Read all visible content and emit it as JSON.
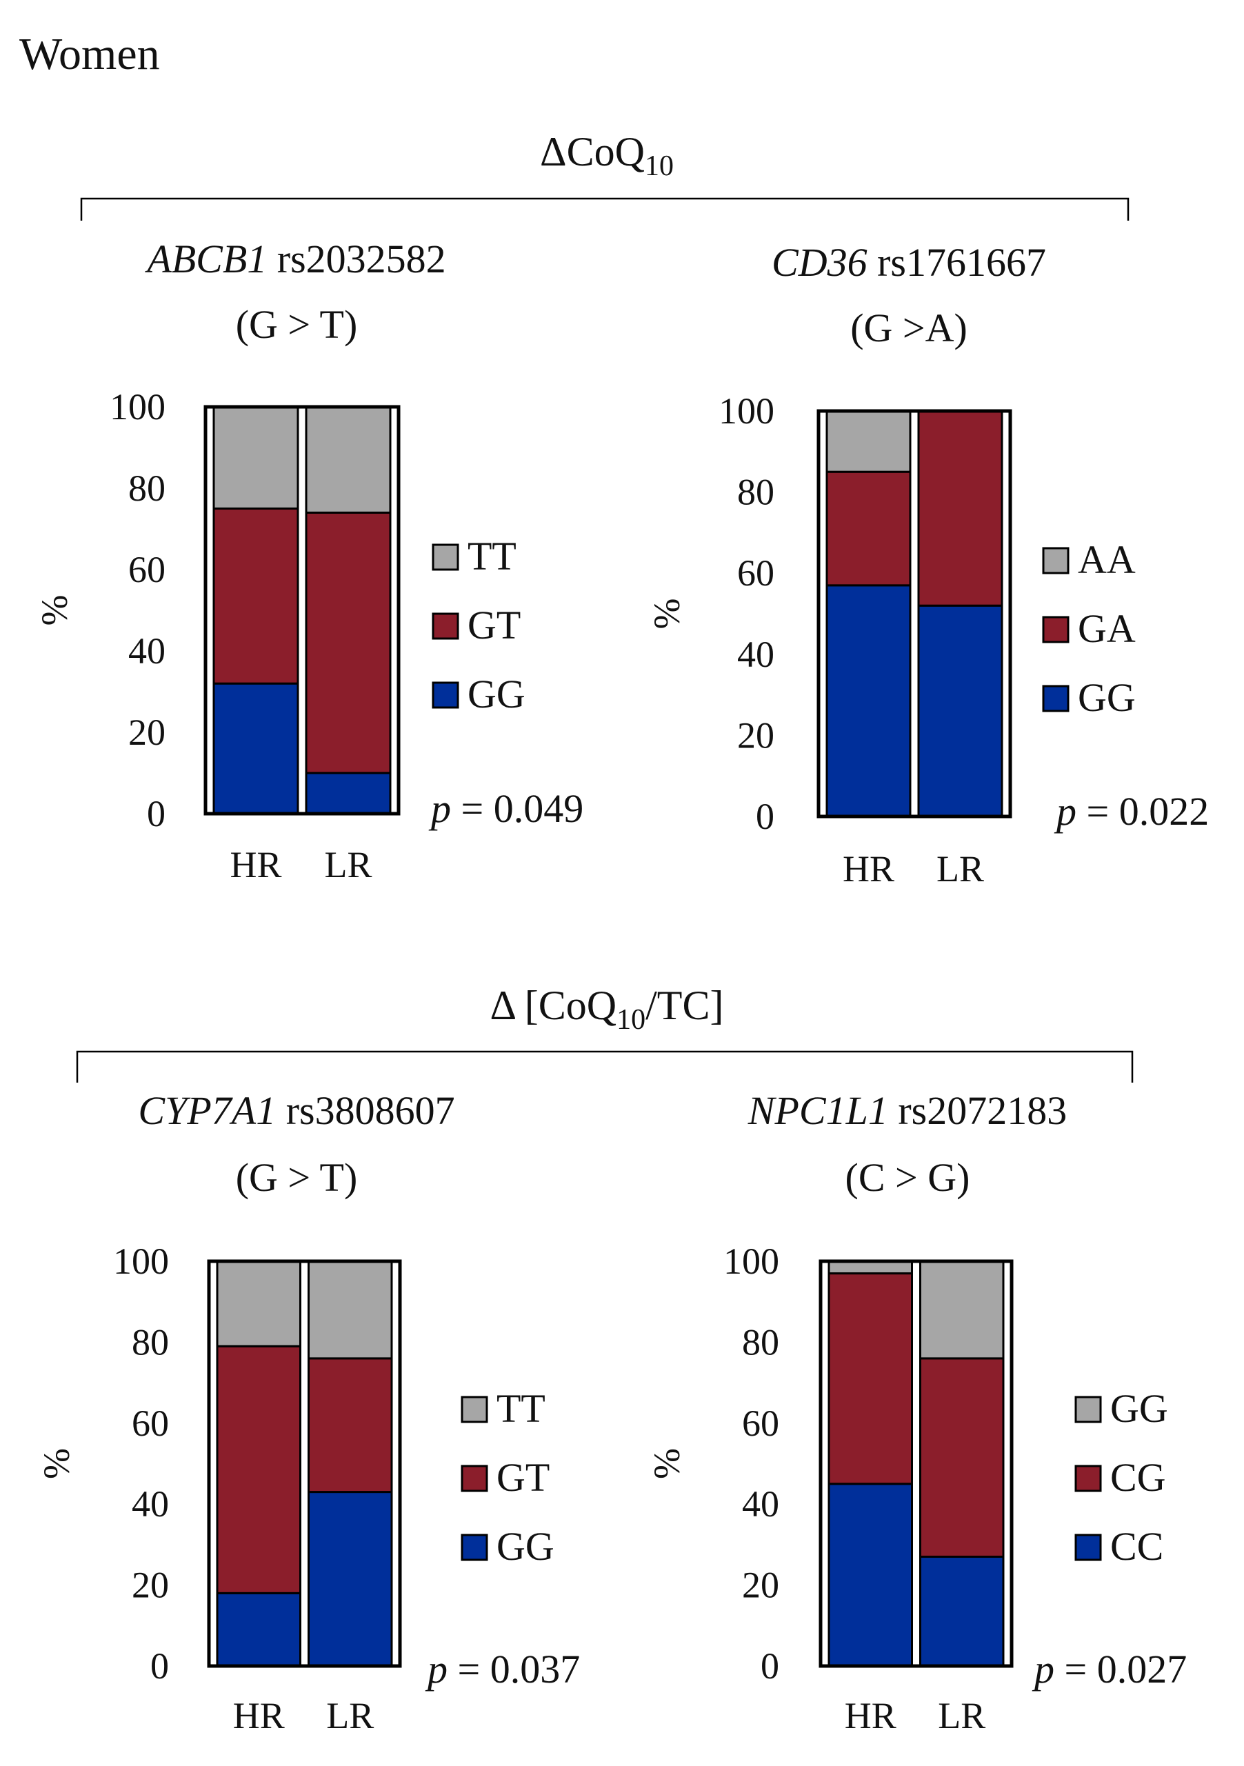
{
  "figure_title": "Women",
  "groups": [
    {
      "label_prefix": "Δ",
      "label_main": "CoQ",
      "label_sub": "10",
      "label_suffix": ""
    },
    {
      "label_prefix": "Δ [",
      "label_main": "CoQ",
      "label_sub": "10",
      "label_suffix": "/TC]"
    }
  ],
  "colors": {
    "gray": "#a6a6a6",
    "red": "#8b1e2b",
    "blue": "#002f9a",
    "outline": "#000000"
  },
  "chart_data": [
    {
      "type": "bar",
      "stacked": true,
      "gene": "ABCB1",
      "snp": "rs2032582",
      "allele": "(G > T)",
      "ylabel": "%",
      "ylim": [
        0,
        100
      ],
      "yticks": [
        "0",
        "20",
        "40",
        "60",
        "80",
        "100"
      ],
      "categories": [
        "HR",
        "LR"
      ],
      "series": [
        {
          "name": "GG",
          "color": "blue",
          "values": [
            32,
            10
          ]
        },
        {
          "name": "GT",
          "color": "red",
          "values": [
            43,
            64
          ]
        },
        {
          "name": "TT",
          "color": "gray",
          "values": [
            25,
            26
          ]
        }
      ],
      "legend": [
        "TT",
        "GT",
        "GG"
      ],
      "p_label": "p",
      "p_value": "= 0.049"
    },
    {
      "type": "bar",
      "stacked": true,
      "gene": "CD36",
      "snp": "rs1761667",
      "allele": "(G >A)",
      "ylabel": "%",
      "ylim": [
        0,
        100
      ],
      "yticks": [
        "0",
        "20",
        "40",
        "60",
        "80",
        "100"
      ],
      "categories": [
        "HR",
        "LR"
      ],
      "series": [
        {
          "name": "GG",
          "color": "blue",
          "values": [
            57,
            52
          ]
        },
        {
          "name": "GA",
          "color": "red",
          "values": [
            28,
            48
          ]
        },
        {
          "name": "AA",
          "color": "gray",
          "values": [
            15,
            0
          ]
        }
      ],
      "legend": [
        "AA",
        "GA",
        "GG"
      ],
      "p_label": "p",
      "p_value": "= 0.022"
    },
    {
      "type": "bar",
      "stacked": true,
      "gene": "CYP7A1",
      "snp": "rs3808607",
      "allele": "(G > T)",
      "ylabel": "%",
      "ylim": [
        0,
        100
      ],
      "yticks": [
        "0",
        "20",
        "40",
        "60",
        "80",
        "100"
      ],
      "categories": [
        "HR",
        "LR"
      ],
      "series": [
        {
          "name": "GG",
          "color": "blue",
          "values": [
            18,
            43
          ]
        },
        {
          "name": "GT",
          "color": "red",
          "values": [
            61,
            33
          ]
        },
        {
          "name": "TT",
          "color": "gray",
          "values": [
            21,
            24
          ]
        }
      ],
      "legend": [
        "TT",
        "GT",
        "GG"
      ],
      "p_label": "p",
      "p_value": "= 0.037"
    },
    {
      "type": "bar",
      "stacked": true,
      "gene": "NPC1L1",
      "snp": "rs2072183",
      "allele": "(C > G)",
      "ylabel": "%",
      "ylim": [
        0,
        100
      ],
      "yticks": [
        "0",
        "20",
        "40",
        "60",
        "80",
        "100"
      ],
      "categories": [
        "HR",
        "LR"
      ],
      "series": [
        {
          "name": "CC",
          "color": "blue",
          "values": [
            45,
            27
          ]
        },
        {
          "name": "CG",
          "color": "red",
          "values": [
            52,
            49
          ]
        },
        {
          "name": "GG",
          "color": "gray",
          "values": [
            3,
            24
          ]
        }
      ],
      "legend": [
        "GG",
        "CG",
        "CC"
      ],
      "p_label": "p",
      "p_value": "= 0.027"
    }
  ]
}
